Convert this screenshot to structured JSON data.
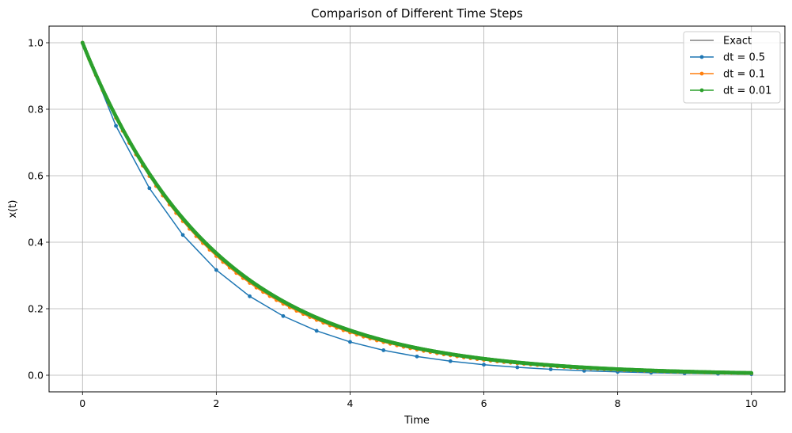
{
  "chart_data": {
    "type": "line",
    "title": "Comparison of Different Time Steps",
    "xlabel": "Time",
    "ylabel": "x(t)",
    "xlim": [
      -0.5,
      10.5
    ],
    "ylim": [
      -0.05,
      1.05
    ],
    "xticks": [
      0,
      2,
      4,
      6,
      8,
      10
    ],
    "yticks": [
      0.0,
      0.2,
      0.4,
      0.6,
      0.8,
      1.0
    ],
    "xtick_labels": [
      "0",
      "2",
      "4",
      "6",
      "8",
      "10"
    ],
    "ytick_labels": [
      "0.0",
      "0.2",
      "0.4",
      "0.6",
      "0.8",
      "1.0"
    ],
    "grid": true,
    "legend_position": "top-right",
    "model": {
      "equation_rate": 0.5,
      "x0": 1.0,
      "t_end": 10
    },
    "series": [
      {
        "name": "Exact",
        "color": "#808080",
        "marker": false,
        "dt": 0.01,
        "method": "exact"
      },
      {
        "name": "dt = 0.5",
        "color": "#1f77b4",
        "marker": true,
        "dt": 0.5,
        "method": "euler"
      },
      {
        "name": "dt = 0.1",
        "color": "#ff7f0e",
        "marker": true,
        "dt": 0.1,
        "method": "euler"
      },
      {
        "name": "dt = 0.01",
        "color": "#2ca02c",
        "marker": true,
        "dt": 0.01,
        "method": "euler"
      }
    ]
  }
}
